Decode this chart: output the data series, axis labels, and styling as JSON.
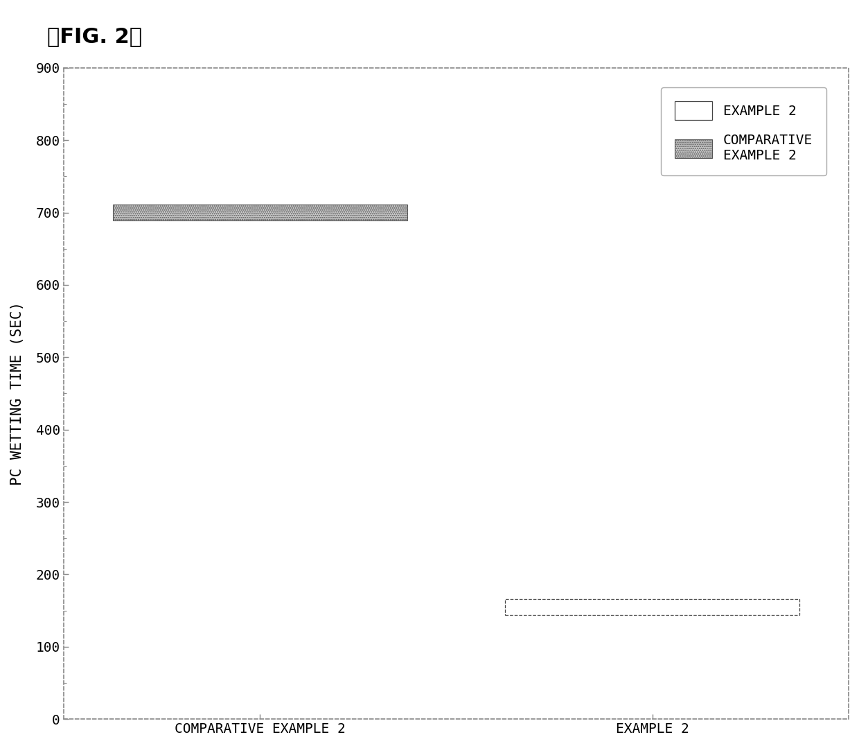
{
  "categories": [
    "COMPARATIVE EXAMPLE 2",
    "EXAMPLE 2"
  ],
  "values": [
    700,
    155
  ],
  "bar_thin": 22,
  "bar_width": 0.75,
  "comp_bar_color": "#cccccc",
  "comp_bar_edgecolor": "#555555",
  "example_bar_color": "#ffffff",
  "example_bar_edgecolor": "#444444",
  "ylabel": "PC WETTING TIME (SEC)",
  "ylim": [
    0,
    900
  ],
  "yticks": [
    0,
    100,
    200,
    300,
    400,
    500,
    600,
    700,
    800,
    900
  ],
  "legend_labels": [
    "EXAMPLE 2",
    "COMPARATIVE\nEXAMPLE 2"
  ],
  "title_text": "【FIG. 2】",
  "title_fontsize": 22,
  "axis_fontsize": 15,
  "tick_fontsize": 14,
  "legend_fontsize": 14,
  "background_color": "#ffffff",
  "spine_color": "#888888",
  "spine_style": "dotted"
}
